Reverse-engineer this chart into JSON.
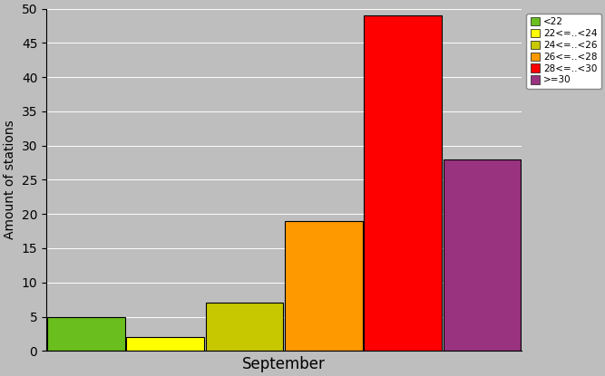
{
  "categories": [
    "<22",
    "22<=..<24",
    "24<=..<26",
    "26<=..<28",
    "28<=..<30",
    ">=30"
  ],
  "values": [
    5,
    2,
    7,
    19,
    49,
    28
  ],
  "colors": [
    "#6abf1e",
    "#ffff00",
    "#c8c800",
    "#ff9900",
    "#ff0000",
    "#993380"
  ],
  "xlabel": "September",
  "ylabel": "Amount of stations",
  "ylim": [
    0,
    50
  ],
  "yticks": [
    0,
    5,
    10,
    15,
    20,
    25,
    30,
    35,
    40,
    45,
    50
  ],
  "background_color": "#bebebe",
  "bar_edge_color": "#000000",
  "bar_width": 0.98,
  "figsize": [
    6.67,
    4.15
  ],
  "dpi": 100
}
